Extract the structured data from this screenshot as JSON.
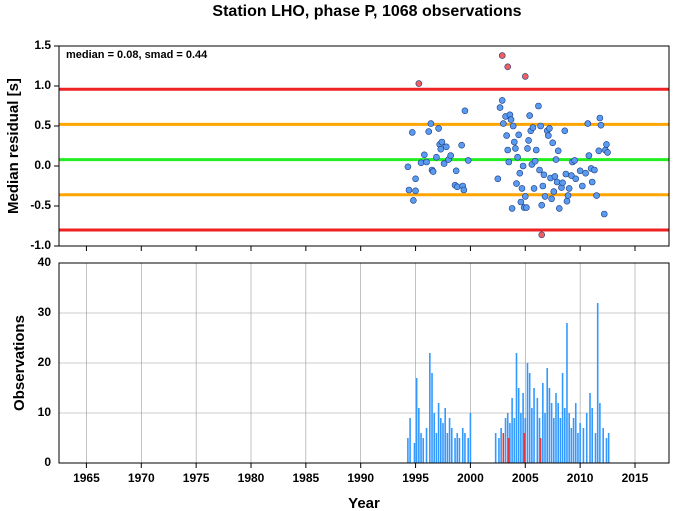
{
  "chart_data": [
    {
      "type": "scatter",
      "title": "Station LHO, phase P, 1068 observations",
      "y_label": "Median residual [s]",
      "annotation": "median = 0.08, smad = 0.44",
      "xlim": [
        1962.5,
        2018.1
      ],
      "xticks": [
        1965,
        1970,
        1975,
        1980,
        1985,
        1990,
        1995,
        2000,
        2005,
        2010,
        2015
      ],
      "ylim": [
        -1.0,
        1.5
      ],
      "yticks": [
        {
          "value": -1.0,
          "label": "-1.0"
        },
        -0.5,
        {
          "value": 0.0,
          "label": "0.0"
        },
        0.5,
        {
          "value": 1.0,
          "label": "1.0"
        },
        1.5
      ],
      "hlines": [
        {
          "value": 0.96,
          "color": "#ee2222"
        },
        {
          "value": 0.52,
          "color": "#ffa500"
        },
        {
          "value": 0.08,
          "color": "#22ee22"
        },
        {
          "value": -0.36,
          "color": "#ffa500"
        },
        {
          "value": -0.8,
          "color": "#ee2222"
        }
      ],
      "series": [
        {
          "color": "#5a9bf0",
          "x": [
            1994.3,
            1994.4,
            1994.7,
            1994.8,
            1995.0,
            1995.0,
            1995.5,
            1995.8,
            1996.0,
            1996.2,
            1996.4,
            1996.5,
            1996.6,
            1996.9,
            1997.1,
            1997.2,
            1997.3,
            1997.4,
            1997.6,
            1997.8,
            1998.0,
            1998.2,
            1998.6,
            1998.7,
            1998.8,
            1999.2,
            1999.3,
            1999.4,
            1999.5,
            1999.8,
            2002.5,
            2002.7,
            2002.9,
            2003.0,
            2003.2,
            2003.3,
            2003.4,
            2003.5,
            2003.6,
            2003.7,
            2003.8,
            2003.9,
            2004.0,
            2004.1,
            2004.2,
            2004.3,
            2004.4,
            2004.5,
            2004.6,
            2004.7,
            2004.8,
            2004.9,
            2005.0,
            2005.1,
            2005.2,
            2005.3,
            2005.4,
            2005.5,
            2005.6,
            2005.7,
            2005.8,
            2005.9,
            2006.0,
            2006.2,
            2006.3,
            2006.4,
            2006.5,
            2006.6,
            2006.7,
            2006.8,
            2007.0,
            2007.1,
            2007.2,
            2007.3,
            2007.4,
            2007.5,
            2007.6,
            2007.7,
            2007.8,
            2007.9,
            2008.0,
            2008.1,
            2008.3,
            2008.4,
            2008.6,
            2008.7,
            2008.8,
            2008.9,
            2009.0,
            2009.2,
            2009.3,
            2009.5,
            2009.6,
            2010.0,
            2010.2,
            2010.5,
            2010.7,
            2010.8,
            2011.0,
            2011.1,
            2011.3,
            2011.5,
            2011.7,
            2011.8,
            2011.9,
            2012.2,
            2012.3,
            2012.4,
            2012.5
          ],
          "values": [
            -0.01,
            -0.3,
            0.42,
            -0.43,
            -0.31,
            -0.16,
            0.04,
            0.14,
            0.05,
            0.43,
            0.53,
            -0.05,
            -0.07,
            0.11,
            0.47,
            0.27,
            0.21,
            0.3,
            0.03,
            0.24,
            0.08,
            0.13,
            -0.24,
            -0.06,
            -0.26,
            0.26,
            -0.25,
            -0.3,
            0.69,
            0.07,
            -0.16,
            0.73,
            0.82,
            0.53,
            0.62,
            0.38,
            0.2,
            0.05,
            0.64,
            0.58,
            -0.53,
            0.5,
            0.3,
            0.22,
            -0.22,
            0.11,
            0.39,
            -0.09,
            -0.45,
            -0.28,
            0.0,
            -0.52,
            -0.38,
            -0.52,
            0.22,
            0.32,
            0.63,
            0.44,
            0.02,
            0.48,
            -0.28,
            0.06,
            0.2,
            0.75,
            -0.05,
            0.5,
            -0.49,
            -0.25,
            -0.11,
            -0.38,
            0.44,
            0.38,
            0.47,
            -0.15,
            -0.41,
            0.29,
            -0.32,
            -0.13,
            0.08,
            -0.2,
            0.19,
            -0.53,
            -0.27,
            -0.21,
            0.44,
            -0.1,
            -0.44,
            -0.37,
            -0.28,
            -0.12,
            0.05,
            0.07,
            -0.16,
            -0.06,
            -0.25,
            -0.09,
            0.53,
            0.13,
            -0.03,
            -0.2,
            -0.05,
            -0.37,
            0.19,
            0.6,
            0.51,
            -0.6,
            0.2,
            0.27,
            0.17
          ]
        },
        {
          "color": "#f06060",
          "x": [
            1995.3,
            2002.9,
            2003.4,
            2005.0,
            2006.5
          ],
          "values": [
            1.03,
            1.38,
            1.24,
            1.12,
            -0.86
          ]
        }
      ]
    },
    {
      "type": "bar",
      "x_label": "Year",
      "y_label": "Observations",
      "xlim": [
        1962.5,
        2018.1
      ],
      "xticks": [
        1965,
        1970,
        1975,
        1980,
        1985,
        1990,
        1995,
        2000,
        2005,
        2010,
        2015
      ],
      "ylim": [
        0,
        40
      ],
      "yticks": [
        0,
        10,
        20,
        30,
        40
      ],
      "grid": true,
      "series": [
        {
          "color": "#3399ff",
          "x": [
            1994.3,
            1994.5,
            1994.9,
            1995.1,
            1995.3,
            1995.5,
            1995.7,
            1996.0,
            1996.3,
            1996.5,
            1996.7,
            1996.9,
            1997.1,
            1997.3,
            1997.5,
            1997.7,
            1997.9,
            1998.1,
            1998.3,
            1998.6,
            1998.8,
            1999.0,
            1999.3,
            1999.5,
            1999.8,
            2000.0,
            2002.3,
            2002.6,
            2002.8,
            2003.2,
            2003.4,
            2003.6,
            2003.8,
            2004.0,
            2004.2,
            2004.4,
            2004.6,
            2004.8,
            2005.0,
            2005.2,
            2005.4,
            2005.6,
            2005.8,
            2006.1,
            2006.3,
            2006.6,
            2006.8,
            2007.0,
            2007.2,
            2007.4,
            2007.6,
            2007.8,
            2008.0,
            2008.2,
            2008.4,
            2008.6,
            2008.8,
            2009.0,
            2009.2,
            2009.4,
            2009.6,
            2009.8,
            2010.0,
            2010.3,
            2010.6,
            2010.9,
            2011.1,
            2011.4,
            2011.6,
            2011.8,
            2012.1,
            2012.4,
            2012.6
          ],
          "values": [
            5,
            9,
            4,
            17,
            11,
            6,
            5,
            7,
            22,
            18,
            10,
            6,
            12,
            9,
            8,
            11,
            6,
            9,
            7,
            5,
            6,
            5,
            7,
            6,
            5,
            10,
            6,
            5,
            7,
            9,
            10,
            8,
            13,
            9,
            22,
            15,
            10,
            14,
            9,
            20,
            18,
            11,
            15,
            13,
            9,
            16,
            10,
            19,
            15,
            12,
            9,
            14,
            12,
            9,
            18,
            11,
            28,
            10,
            7,
            9,
            12,
            6,
            8,
            7,
            10,
            14,
            11,
            6,
            32,
            12,
            7,
            5,
            6
          ]
        },
        {
          "color": "#ee3333",
          "x": [
            2003.0,
            2003.5,
            2004.9,
            2006.4
          ],
          "values": [
            6,
            5,
            6,
            5
          ]
        }
      ]
    }
  ]
}
